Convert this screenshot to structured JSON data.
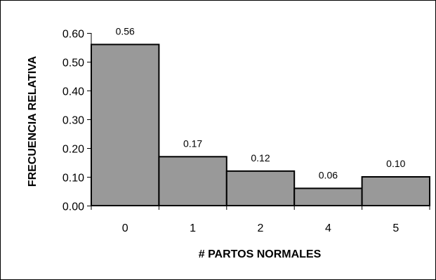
{
  "chart_data": {
    "type": "bar",
    "categories": [
      "0",
      "1",
      "2",
      "4",
      "5"
    ],
    "values": [
      0.56,
      0.17,
      0.12,
      0.06,
      0.1
    ],
    "data_labels": [
      "0.56",
      "0.17",
      "0.12",
      "0.06",
      "0.10"
    ],
    "xlabel": "# PARTOS NORMALES",
    "ylabel": "FRECUENCIA RELATIVA",
    "ylim": [
      0,
      0.6
    ],
    "yticks": [
      0,
      0.1,
      0.2,
      0.3,
      0.4,
      0.5,
      0.6
    ],
    "ytick_labels": [
      "0.00",
      "0.10",
      "0.20",
      "0.30",
      "0.40",
      "0.50",
      "0.60"
    ],
    "grid": false,
    "legend": "none",
    "colors": {
      "bar_fill": "#999999",
      "bar_stroke": "#000000",
      "axis": "#000000"
    }
  }
}
